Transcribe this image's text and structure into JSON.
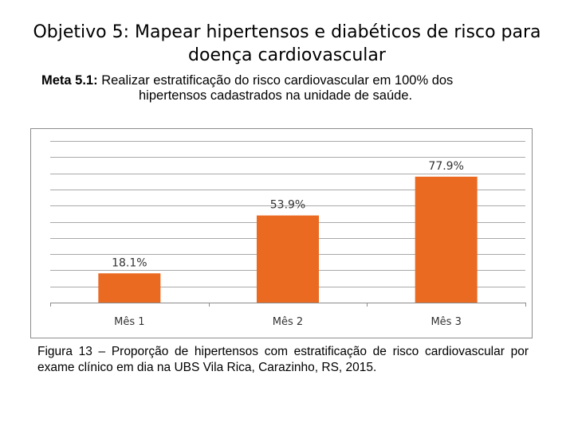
{
  "slide": {
    "title_line1": "Objetivo 5: Mapear hipertensos e diabéticos de risco para",
    "title_line2": "doença cardiovascular",
    "goal_label": "Meta 5.1:",
    "goal_text_line1": " Realizar estratificação do risco cardiovascular em 100% dos",
    "goal_text_line2": "hipertensos cadastrados na unidade de saúde.",
    "caption": "Figura 13 – Proporção de hipertensos com estratificação de risco cardiovascular por exame clínico em dia na UBS Vila Rica, Carazinho, RS, 2015."
  },
  "chart_data": {
    "type": "bar",
    "title": "",
    "xlabel": "",
    "ylabel": "",
    "categories": [
      "Mês 1",
      "Mês 2",
      "Mês 3"
    ],
    "values": [
      18.1,
      53.9,
      77.9
    ],
    "labels": [
      "18.1%",
      "53.9%",
      "77.9%"
    ],
    "ylim": [
      0,
      100
    ],
    "grid": true,
    "bar_color": "#ea6a22",
    "grid_color": "#8c8c8c"
  }
}
